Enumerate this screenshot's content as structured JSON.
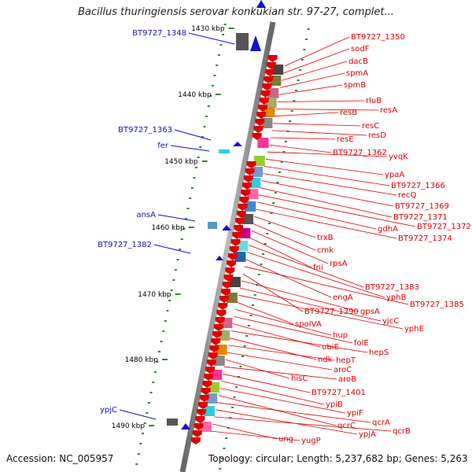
{
  "title": "Bacillus thuringiensis serovar konkukian str. 97-27, complet...",
  "footer": {
    "accession": "Accession: NC_005957",
    "topology": "Topology: circular; Length: 5,237,682 bp; Genes: 5,263"
  },
  "colors": {
    "forward": "#1111cc",
    "reverse": "#dd0000",
    "backbone": "#888888"
  },
  "scale_labels": [
    "1430 kbp",
    "1440 kbp",
    "1450 kbp",
    "1460 kbp",
    "1470 kbp",
    "1480 kbp",
    "1490 kbp"
  ],
  "left_genes": [
    "BT9727_1348",
    "BT9727_1363",
    "fer",
    "ansA",
    "BT9727_1382",
    "ypjC"
  ],
  "right_genes": [
    "BT9727_1350",
    "sodF",
    "dacB",
    "spmA",
    "spmB",
    "rluB",
    "resA",
    "resB",
    "resC",
    "resD",
    "resE",
    "BT9727_1362",
    "yvqK",
    "ypaA",
    "BT9727_1366",
    "recQ",
    "BT9727_1369",
    "BT9727_1371",
    "BT9727_1372",
    "gdhA",
    "BT9727_1374",
    "trxB",
    "cmk",
    "rpsA",
    "fni",
    "BT9727_1383",
    "yphB",
    "engA",
    "BT9727_1385",
    "BT9727_1390",
    "gpsA",
    "yjcC",
    "yphE",
    "spoIVA",
    "hup",
    "folE",
    "ubiE",
    "hepS",
    "ndk",
    "hepT",
    "aroC",
    "hisC",
    "aroB",
    "BT9727_1401",
    "ypiB",
    "ypiF",
    "qcrC",
    "qcrA",
    "ypjA",
    "qcrB",
    "ung",
    "yugP"
  ]
}
